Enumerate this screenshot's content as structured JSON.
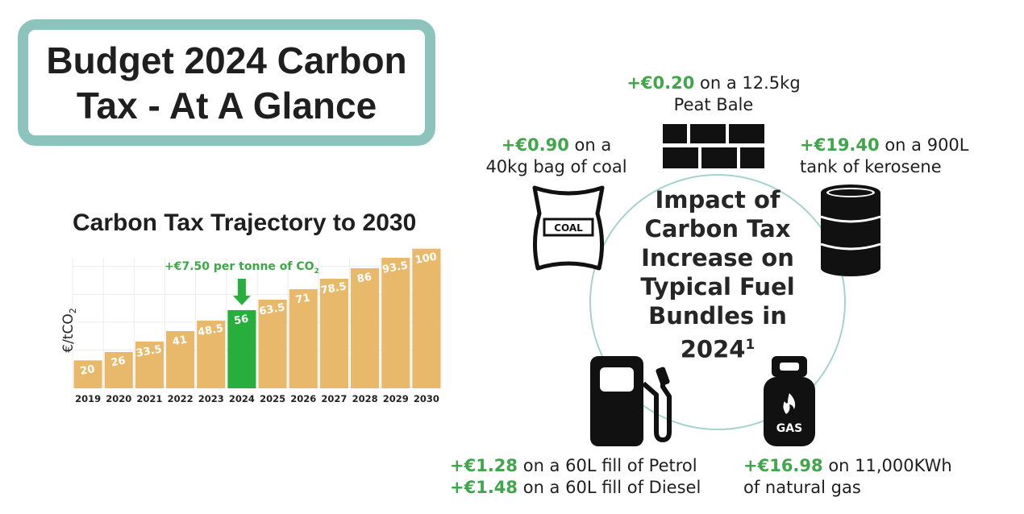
{
  "title": {
    "line1": "Budget 2024 Carbon",
    "line2": "Tax - At A Glance"
  },
  "colors": {
    "bar": "#e8b96a",
    "highlight": "#27ae3c",
    "accent_green": "#3fa74a",
    "border": "#8cc4bd"
  },
  "chart_data": {
    "type": "bar",
    "title": "Carbon Tax Trajectory to 2030",
    "ylabel": "€/tCO2",
    "categories": [
      "2019",
      "2020",
      "2021",
      "2022",
      "2023",
      "2024",
      "2025",
      "2026",
      "2027",
      "2028",
      "2029",
      "2030"
    ],
    "values": [
      20,
      26,
      33.5,
      41,
      48.5,
      56,
      63.5,
      71,
      78.5,
      86,
      93.5,
      100
    ],
    "highlight_category": "2024",
    "annotation": "+€7.50 per tonne of CO2",
    "ylim": [
      0,
      105
    ],
    "grid": true
  },
  "center": {
    "lines": [
      "Impact of",
      "Carbon Tax",
      "Increase on",
      "Typical Fuel",
      "Bundles in"
    ],
    "year": "2024",
    "footnote": "1"
  },
  "fuels": {
    "peat": {
      "amount": "+€0.20",
      "text1": "on a 12.5kg",
      "text2": "Peat Bale",
      "icon": "peat-bale-icon"
    },
    "coal": {
      "amount": "+€0.90",
      "text1": "on a",
      "text2": "40kg bag of coal",
      "icon": "coal-bag-icon",
      "icon_label": "COAL"
    },
    "kerosene": {
      "amount": "+€19.40",
      "text1": "on a 900L",
      "text2": "tank of kerosene",
      "icon": "oil-barrel-icon"
    },
    "petrol": {
      "amount": "+€1.28",
      "text1": "on a 60L fill of Petrol",
      "icon": "fuel-pump-icon"
    },
    "diesel": {
      "amount": "+€1.48",
      "text1": "on a 60L fill of Diesel"
    },
    "gas": {
      "amount": "+€16.98",
      "text1": "on 11,000KWh",
      "text2": "of natural gas",
      "icon": "gas-cylinder-icon",
      "icon_label": "GAS"
    }
  }
}
